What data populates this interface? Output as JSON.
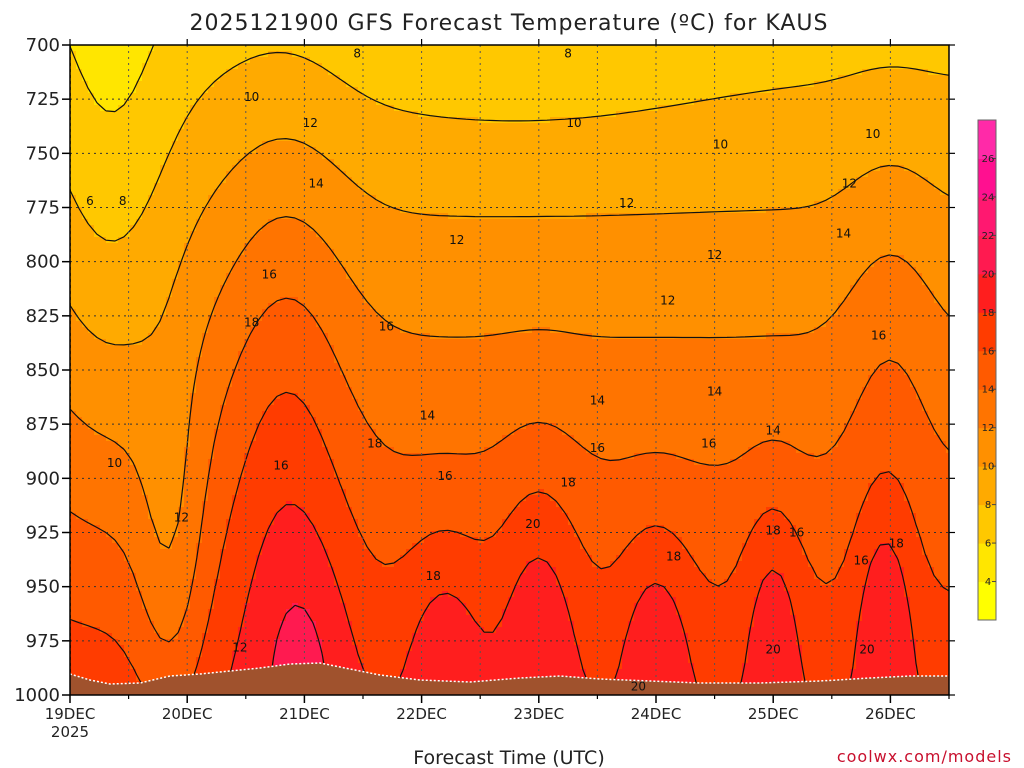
{
  "chart_data": {
    "type": "heatmap",
    "title": "2025121900 GFS Forecast Temperature (ºC) for KAUS",
    "xlabel": "Forecast Time (UTC)",
    "ylabel": "",
    "credit": "coolwx.com/models",
    "x_ticks": [
      {
        "label": "19DEC",
        "sub": "2025",
        "t": 0
      },
      {
        "label": "20DEC",
        "sub": "",
        "t": 1
      },
      {
        "label": "21DEC",
        "sub": "",
        "t": 2
      },
      {
        "label": "22DEC",
        "sub": "",
        "t": 3
      },
      {
        "label": "23DEC",
        "sub": "",
        "t": 4
      },
      {
        "label": "24DEC",
        "sub": "",
        "t": 5
      },
      {
        "label": "25DEC",
        "sub": "",
        "t": 6
      },
      {
        "label": "26DEC",
        "sub": "",
        "t": 7
      }
    ],
    "x_range_days": [
      0,
      7.5
    ],
    "y_levels": [
      700,
      725,
      750,
      775,
      800,
      825,
      850,
      875,
      900,
      925,
      950,
      975,
      1000
    ],
    "y_range": [
      700,
      1000
    ],
    "colorbar": {
      "levels": [
        4,
        6,
        8,
        10,
        12,
        14,
        16,
        18,
        20,
        22,
        24,
        26
      ],
      "colors": [
        "#ffff00",
        "#ffe600",
        "#ffc800",
        "#ffaa00",
        "#ff9000",
        "#ff7400",
        "#ff5a00",
        "#ff3c00",
        "#ff1e1e",
        "#ff1a50",
        "#ff1870",
        "#ff1090",
        "#ff2aa8"
      ]
    },
    "contour_labels": [
      {
        "text": "8",
        "t": 2.45,
        "p": 704
      },
      {
        "text": "8",
        "t": 4.25,
        "p": 704
      },
      {
        "text": "6",
        "t": 0.17,
        "p": 772
      },
      {
        "text": "8",
        "t": 0.45,
        "p": 772
      },
      {
        "text": "10",
        "t": 1.55,
        "p": 724
      },
      {
        "text": "10",
        "t": 4.3,
        "p": 736
      },
      {
        "text": "10",
        "t": 5.55,
        "p": 746
      },
      {
        "text": "10",
        "t": 6.85,
        "p": 741
      },
      {
        "text": "12",
        "t": 2.05,
        "p": 736
      },
      {
        "text": "12",
        "t": 3.3,
        "p": 790
      },
      {
        "text": "12",
        "t": 4.75,
        "p": 773
      },
      {
        "text": "12",
        "t": 5.5,
        "p": 797
      },
      {
        "text": "12",
        "t": 5.1,
        "p": 818
      },
      {
        "text": "12",
        "t": 6.65,
        "p": 764
      },
      {
        "text": "12",
        "t": 1.45,
        "p": 978
      },
      {
        "text": "12",
        "t": 0.95,
        "p": 918
      },
      {
        "text": "14",
        "t": 2.1,
        "p": 764
      },
      {
        "text": "14",
        "t": 3.05,
        "p": 871
      },
      {
        "text": "14",
        "t": 4.5,
        "p": 864
      },
      {
        "text": "14",
        "t": 5.5,
        "p": 860
      },
      {
        "text": "14",
        "t": 6.0,
        "p": 878
      },
      {
        "text": "14",
        "t": 6.6,
        "p": 787
      },
      {
        "text": "10",
        "t": 0.38,
        "p": 893
      },
      {
        "text": "16",
        "t": 1.7,
        "p": 806
      },
      {
        "text": "16",
        "t": 2.7,
        "p": 830
      },
      {
        "text": "16",
        "t": 1.8,
        "p": 894
      },
      {
        "text": "16",
        "t": 3.2,
        "p": 899
      },
      {
        "text": "16",
        "t": 4.5,
        "p": 886
      },
      {
        "text": "16",
        "t": 5.45,
        "p": 884
      },
      {
        "text": "16",
        "t": 6.2,
        "p": 925
      },
      {
        "text": "16",
        "t": 6.75,
        "p": 938
      },
      {
        "text": "16",
        "t": 6.9,
        "p": 834
      },
      {
        "text": "18",
        "t": 1.55,
        "p": 828
      },
      {
        "text": "18",
        "t": 2.6,
        "p": 884
      },
      {
        "text": "18",
        "t": 4.25,
        "p": 902
      },
      {
        "text": "18",
        "t": 3.1,
        "p": 945
      },
      {
        "text": "18",
        "t": 5.15,
        "p": 936
      },
      {
        "text": "18",
        "t": 6.0,
        "p": 924
      },
      {
        "text": "18",
        "t": 7.05,
        "p": 930
      },
      {
        "text": "20",
        "t": 3.95,
        "p": 921
      },
      {
        "text": "20",
        "t": 6.0,
        "p": 979
      },
      {
        "text": "20",
        "t": 6.8,
        "p": 979
      },
      {
        "text": "20",
        "t": 4.85,
        "p": 996
      }
    ]
  }
}
